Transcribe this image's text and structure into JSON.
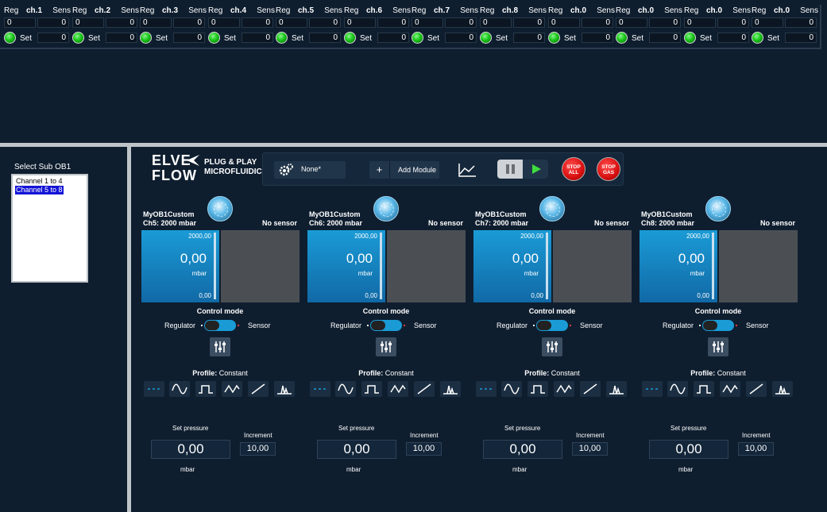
{
  "top_strip": {
    "channels": [
      {
        "reg_label": "Reg",
        "name": "ch.1",
        "sens_label": "Sens",
        "reg_value": "0",
        "sens_value": "0",
        "set_label": "Set",
        "set_value": "0"
      },
      {
        "reg_label": "Reg",
        "name": "ch.2",
        "sens_label": "Sens",
        "reg_value": "0",
        "sens_value": "0",
        "set_label": "Set",
        "set_value": "0"
      },
      {
        "reg_label": "Reg",
        "name": "ch.3",
        "sens_label": "Sens",
        "reg_value": "0",
        "sens_value": "0",
        "set_label": "Set",
        "set_value": "0"
      },
      {
        "reg_label": "Reg",
        "name": "ch.4",
        "sens_label": "Sens",
        "reg_value": "0",
        "sens_value": "0",
        "set_label": "Set",
        "set_value": "0"
      },
      {
        "reg_label": "Reg",
        "name": "ch.5",
        "sens_label": "Sens",
        "reg_value": "0",
        "sens_value": "0",
        "set_label": "Set",
        "set_value": "0"
      },
      {
        "reg_label": "Reg",
        "name": "ch.6",
        "sens_label": "Sens",
        "reg_value": "0",
        "sens_value": "0",
        "set_label": "Set",
        "set_value": "0"
      },
      {
        "reg_label": "Reg",
        "name": "ch.7",
        "sens_label": "Sens",
        "reg_value": "0",
        "sens_value": "0",
        "set_label": "Set",
        "set_value": "0"
      },
      {
        "reg_label": "Reg",
        "name": "ch.8",
        "sens_label": "Sens",
        "reg_value": "0",
        "sens_value": "0",
        "set_label": "Set",
        "set_value": "0"
      },
      {
        "reg_label": "Reg",
        "name": "ch.0",
        "sens_label": "Sens",
        "reg_value": "0",
        "sens_value": "0",
        "set_label": "Set",
        "set_value": "0"
      },
      {
        "reg_label": "Reg",
        "name": "ch.0",
        "sens_label": "Sens",
        "reg_value": "0",
        "sens_value": "0",
        "set_label": "Set",
        "set_value": "0"
      },
      {
        "reg_label": "Reg",
        "name": "ch.0",
        "sens_label": "Sens",
        "reg_value": "0",
        "sens_value": "0",
        "set_label": "Set",
        "set_value": "0"
      },
      {
        "reg_label": "Reg",
        "name": "ch.0",
        "sens_label": "Sens",
        "reg_value": "0",
        "sens_value": "0",
        "set_label": "Set",
        "set_value": "0"
      }
    ],
    "led_color": "#19c619"
  },
  "left_panel": {
    "title": "Select Sub OB1",
    "items": [
      {
        "label": "Channel 1 to 4",
        "selected": false
      },
      {
        "label": "Channel 5 to 8",
        "selected": true
      }
    ]
  },
  "header": {
    "logo_line1": "ELVE",
    "logo_line2": "FLOW",
    "tagline1": "PLUG & PLAY",
    "tagline2": "MICROFLUIDICS"
  },
  "toolbar": {
    "config_label": "None*",
    "add_plus": "+",
    "add_module_label": "Add Module",
    "stop_all_line1": "STOP",
    "stop_all_line2": "ALL",
    "stop_gas_line1": "STOP",
    "stop_gas_line2": "GAS",
    "stop_color": "#d81010"
  },
  "panels": [
    {
      "name": "MyOB1Custom",
      "range": "Ch5: 2000 mbar",
      "sensor": "No sensor",
      "max": "2000,00",
      "value": "0,00",
      "unit": "mbar",
      "min": "0,00",
      "control_mode": "Control mode",
      "regulator": "Regulator",
      "sensor_lbl": "Sensor",
      "profile_label": "Profile:",
      "profile_value": "Constant",
      "set_pressure_lbl": "Set pressure",
      "increment_lbl": "Increment",
      "set_pressure": "0,00",
      "increment": "10,00",
      "set_unit": "mbar"
    },
    {
      "name": "MyOB1Custom",
      "range": "Ch6: 2000 mbar",
      "sensor": "No sensor",
      "max": "2000,00",
      "value": "0,00",
      "unit": "mbar",
      "min": "0,00",
      "control_mode": "Control mode",
      "regulator": "Regulator",
      "sensor_lbl": "Sensor",
      "profile_label": "Profile:",
      "profile_value": "Constant",
      "set_pressure_lbl": "Set pressure",
      "increment_lbl": "Increment",
      "set_pressure": "0,00",
      "increment": "10,00",
      "set_unit": "mbar"
    },
    {
      "name": "MyOB1Custom",
      "range": "Ch7: 2000 mbar",
      "sensor": "No sensor",
      "max": "2000,00",
      "value": "0,00",
      "unit": "mbar",
      "min": "0,00",
      "control_mode": "Control mode",
      "regulator": "Regulator",
      "sensor_lbl": "Sensor",
      "profile_label": "Profile:",
      "profile_value": "Constant",
      "set_pressure_lbl": "Set pressure",
      "increment_lbl": "Increment",
      "set_pressure": "0,00",
      "increment": "10,00",
      "set_unit": "mbar"
    },
    {
      "name": "MyOB1Custom",
      "range": "Ch8: 2000 mbar",
      "sensor": "No sensor",
      "max": "2000,00",
      "value": "0,00",
      "unit": "mbar",
      "min": "0,00",
      "control_mode": "Control mode",
      "regulator": "Regulator",
      "sensor_lbl": "Sensor",
      "profile_label": "Profile:",
      "profile_value": "Constant",
      "set_pressure_lbl": "Set pressure",
      "increment_lbl": "Increment",
      "set_pressure": "0,00",
      "increment": "10,00",
      "set_unit": "mbar"
    }
  ],
  "profile_icons": [
    "constant-icon",
    "sine-icon",
    "square-icon",
    "triangle-icon",
    "ramp-icon",
    "pulse-icon"
  ],
  "colors": {
    "accent": "#1a9bd6",
    "background": "#0f1e2f"
  }
}
